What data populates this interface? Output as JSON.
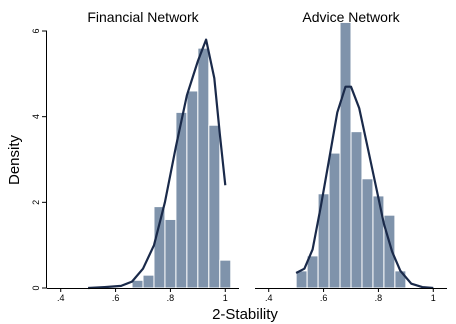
{
  "chart_data": {
    "type": "bar",
    "ylabel": "Density",
    "xlabel": "2-Stability",
    "xlim": [
      0.35,
      1.05
    ],
    "ylim": [
      0,
      6
    ],
    "xticks": [
      ".4",
      ".6",
      ".8",
      "1"
    ],
    "yticks": [
      "0",
      "2",
      "4",
      "6"
    ],
    "grid": false,
    "colors": {
      "bars": "#7f93ab",
      "bar_edge": "#ffffff",
      "density_line": "#1a2a4a"
    },
    "panels": [
      {
        "title": "Financial Network",
        "bin_width": 0.04,
        "bins": [
          {
            "x0": 0.66,
            "value": 0.18
          },
          {
            "x0": 0.7,
            "value": 0.3
          },
          {
            "x0": 0.74,
            "value": 1.9
          },
          {
            "x0": 0.78,
            "value": 1.6
          },
          {
            "x0": 0.82,
            "value": 4.1
          },
          {
            "x0": 0.86,
            "value": 4.6
          },
          {
            "x0": 0.9,
            "value": 5.6
          },
          {
            "x0": 0.94,
            "value": 3.8
          },
          {
            "x0": 0.98,
            "value": 0.65
          }
        ],
        "density_curve": [
          [
            0.5,
            0.0
          ],
          [
            0.56,
            0.02
          ],
          [
            0.62,
            0.05
          ],
          [
            0.66,
            0.15
          ],
          [
            0.7,
            0.45
          ],
          [
            0.74,
            1.0
          ],
          [
            0.78,
            2.0
          ],
          [
            0.82,
            3.3
          ],
          [
            0.86,
            4.5
          ],
          [
            0.9,
            5.3
          ],
          [
            0.93,
            5.8
          ],
          [
            0.96,
            4.9
          ],
          [
            0.98,
            3.6
          ],
          [
            1.0,
            2.4
          ]
        ]
      },
      {
        "title": "Advice Network",
        "bin_width": 0.04,
        "bins": [
          {
            "x0": 0.5,
            "value": 0.4
          },
          {
            "x0": 0.54,
            "value": 0.75
          },
          {
            "x0": 0.58,
            "value": 2.2
          },
          {
            "x0": 0.62,
            "value": 3.15
          },
          {
            "x0": 0.66,
            "value": 6.2
          },
          {
            "x0": 0.7,
            "value": 3.65
          },
          {
            "x0": 0.74,
            "value": 2.55
          },
          {
            "x0": 0.78,
            "value": 2.15
          },
          {
            "x0": 0.82,
            "value": 1.7
          },
          {
            "x0": 0.86,
            "value": 0.4
          }
        ],
        "density_curve": [
          [
            0.5,
            0.35
          ],
          [
            0.53,
            0.45
          ],
          [
            0.56,
            0.9
          ],
          [
            0.59,
            1.9
          ],
          [
            0.62,
            3.0
          ],
          [
            0.65,
            4.1
          ],
          [
            0.68,
            4.7
          ],
          [
            0.7,
            4.7
          ],
          [
            0.73,
            4.2
          ],
          [
            0.76,
            3.3
          ],
          [
            0.79,
            2.4
          ],
          [
            0.82,
            1.5
          ],
          [
            0.85,
            0.85
          ],
          [
            0.88,
            0.4
          ],
          [
            0.92,
            0.1
          ],
          [
            0.96,
            0.02
          ],
          [
            1.0,
            0.0
          ]
        ]
      }
    ]
  }
}
